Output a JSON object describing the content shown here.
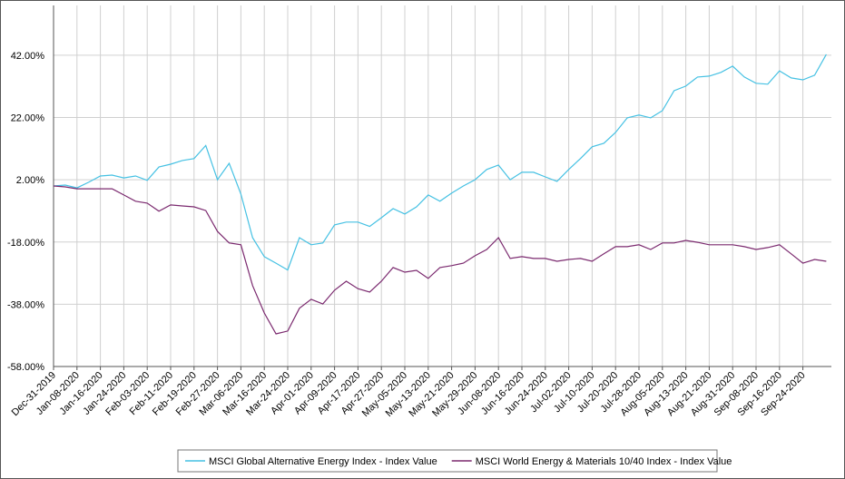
{
  "chart_data": {
    "type": "line",
    "categories": [
      "Dec-31-2019",
      null,
      "Jan-08-2020",
      null,
      "Jan-16-2020",
      null,
      "Jan-24-2020",
      null,
      "Feb-03-2020",
      null,
      "Feb-11-2020",
      null,
      "Feb-19-2020",
      null,
      "Feb-27-2020",
      null,
      "Mar-06-2020",
      null,
      "Mar-16-2020",
      null,
      "Mar-24-2020",
      null,
      "Apr-01-2020",
      null,
      "Apr-09-2020",
      null,
      "Apr-17-2020",
      null,
      "Apr-27-2020",
      null,
      "May-05-2020",
      null,
      "May-13-2020",
      null,
      "May-21-2020",
      null,
      "May-29-2020",
      null,
      "Jun-08-2020",
      null,
      "Jun-16-2020",
      null,
      "Jun-24-2020",
      null,
      "Jul-02-2020",
      null,
      "Jul-10-2020",
      null,
      "Jul-20-2020",
      null,
      "Jul-28-2020",
      null,
      "Aug-05-2020",
      null,
      "Aug-13-2020",
      null,
      "Aug-21-2020",
      null,
      "Aug-31-2020",
      null,
      "Sep-08-2020",
      null,
      "Sep-16-2020",
      null,
      "Sep-24-2020",
      null,
      null
    ],
    "series": [
      {
        "name": "MSCI Global Alternative Energy Index - Index Value",
        "color": "#45c1e3",
        "values": [
          0,
          0.3,
          -0.6,
          1.2,
          3.2,
          3.5,
          2.6,
          3.2,
          1.8,
          6.1,
          7,
          8.2,
          8.8,
          13,
          2,
          7.3,
          -2.6,
          -16.6,
          -22.7,
          -24.8,
          -27,
          -16.6,
          -18.9,
          -18.3,
          -12.5,
          -11.6,
          -11.6,
          -13,
          -10.2,
          -7.3,
          -9,
          -6.7,
          -2.9,
          -4.9,
          -2.3,
          0,
          2,
          5.3,
          6.7,
          2,
          4.4,
          4.4,
          2.9,
          1.5,
          5.3,
          8.8,
          12.6,
          13.7,
          17.2,
          21.9,
          22.8,
          21.9,
          24.2,
          30.6,
          32.1,
          35,
          35.3,
          36.5,
          38.5,
          35,
          33,
          32.7,
          37,
          34.7,
          34.1,
          35.6,
          42.3
        ]
      },
      {
        "name": "MSCI World Energy & Materials 10/40 Index - Index Value",
        "color": "#7b2a6f",
        "values": [
          0,
          -0.3,
          -0.9,
          -0.9,
          -0.9,
          -0.9,
          -2.9,
          -4.9,
          -5.5,
          -8.1,
          -6.1,
          -6.4,
          -6.7,
          -7.9,
          -14.6,
          -18.3,
          -18.9,
          -32,
          -40.8,
          -47.5,
          -46.6,
          -39.3,
          -36.4,
          -37.9,
          -33.5,
          -30.6,
          -33,
          -34.1,
          -30.6,
          -26.2,
          -27.7,
          -27.1,
          -29.7,
          -26.2,
          -25.6,
          -24.8,
          -22.4,
          -20.4,
          -16.6,
          -23.3,
          -22.7,
          -23.3,
          -23.3,
          -24.2,
          -23.6,
          -23.3,
          -24.2,
          -21.8,
          -19.5,
          -19.5,
          -18.9,
          -20.4,
          -18.3,
          -18.3,
          -17.5,
          -18.1,
          -18.9,
          -18.9,
          -18.9,
          -19.5,
          -20.4,
          -19.8,
          -18.9,
          -21.8,
          -24.8,
          -23.6,
          -24.2
        ]
      }
    ],
    "ylim": [
      -58,
      58
    ],
    "yticks": [
      {
        "value": -58,
        "label": "-58.00%"
      },
      {
        "value": -38,
        "label": "-38.00%"
      },
      {
        "value": -18,
        "label": "-18.00%"
      },
      {
        "value": 2,
        "label": "2.00%"
      },
      {
        "value": 22,
        "label": "22.00%"
      },
      {
        "value": 42,
        "label": "42.00%"
      }
    ],
    "grid": true
  }
}
